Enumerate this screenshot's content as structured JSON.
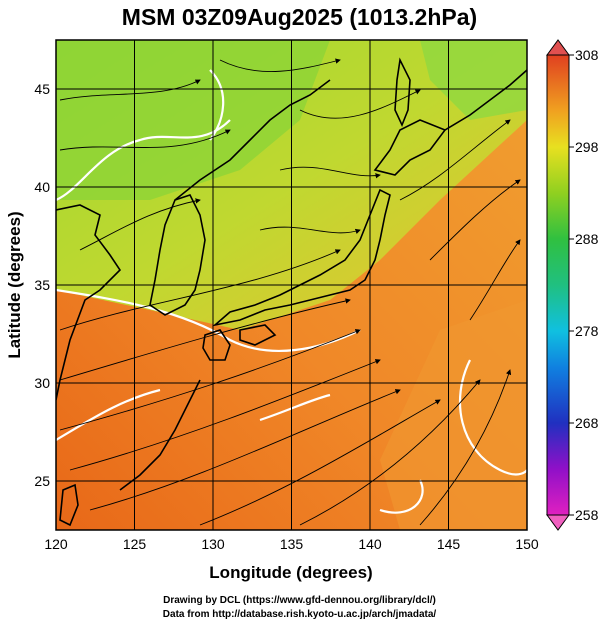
{
  "title": "MSM 03Z09Aug2025 (1013.2hPa)",
  "x_axis": {
    "label": "Longitude (degrees)",
    "range": [
      120,
      150
    ],
    "ticks": [
      120,
      125,
      130,
      135,
      140,
      145,
      150
    ]
  },
  "y_axis": {
    "label": "Latitude  (degrees)",
    "range": [
      22.5,
      47.5
    ],
    "ticks": [
      25,
      30,
      35,
      40,
      45
    ]
  },
  "colorbar": {
    "range": [
      258,
      308
    ],
    "ticks": [
      258,
      268,
      278,
      288,
      298,
      308
    ],
    "colors": [
      "#e020c0",
      "#8010c0",
      "#2030c0",
      "#1080e0",
      "#10c0e0",
      "#20c0a0",
      "#30c040",
      "#80d020",
      "#e0e020",
      "#f0b020",
      "#f08020",
      "#e05020"
    ]
  },
  "map_colors": {
    "ocean_warm": "#f07820",
    "ocean_mid": "#f09a30",
    "land_cool": "#80d040",
    "land_yellow": "#d0d830",
    "coast": "#000000",
    "contour": "#ffffff",
    "grid": "#000000"
  },
  "credits": {
    "line1": "Drawing by DCL (https://www.gfd-dennou.org/library/dcl/)",
    "line2": "Data from http://database.rish.kyoto-u.ac.jp/arch/jmadata/"
  }
}
